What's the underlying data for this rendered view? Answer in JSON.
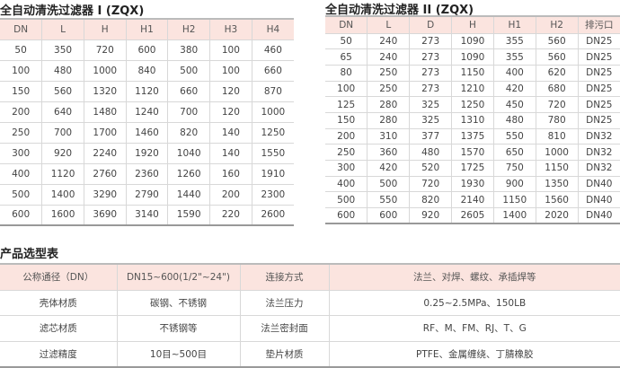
{
  "table1": {
    "title": "全自动清洗过滤器 I (ZQX)",
    "headers": [
      "DN",
      "L",
      "H",
      "H1",
      "H2",
      "H3",
      "H4"
    ],
    "rows": [
      [
        "50",
        "350",
        "720",
        "600",
        "380",
        "100",
        "460"
      ],
      [
        "100",
        "480",
        "1000",
        "840",
        "500",
        "100",
        "660"
      ],
      [
        "150",
        "560",
        "1320",
        "1120",
        "660",
        "120",
        "870"
      ],
      [
        "200",
        "640",
        "1480",
        "1240",
        "700",
        "120",
        "1000"
      ],
      [
        "250",
        "700",
        "1700",
        "1460",
        "820",
        "140",
        "1250"
      ],
      [
        "300",
        "920",
        "2240",
        "1920",
        "1040",
        "140",
        "1550"
      ],
      [
        "400",
        "1120",
        "2760",
        "2360",
        "1260",
        "160",
        "1910"
      ],
      [
        "500",
        "1400",
        "3290",
        "2790",
        "1440",
        "200",
        "2300"
      ],
      [
        "600",
        "1600",
        "3690",
        "3140",
        "1590",
        "220",
        "2600"
      ]
    ]
  },
  "table2": {
    "title": "全自动清洗过滤器 II (ZQX)",
    "headers": [
      "DN",
      "L",
      "D",
      "H",
      "H1",
      "H2",
      "排污口"
    ],
    "rows": [
      [
        "50",
        "240",
        "273",
        "1090",
        "355",
        "560",
        "DN25"
      ],
      [
        "65",
        "240",
        "273",
        "1090",
        "355",
        "560",
        "DN25"
      ],
      [
        "80",
        "250",
        "273",
        "1150",
        "400",
        "620",
        "DN25"
      ],
      [
        "100",
        "250",
        "273",
        "1210",
        "420",
        "680",
        "DN25"
      ],
      [
        "125",
        "280",
        "325",
        "1250",
        "450",
        "720",
        "DN25"
      ],
      [
        "150",
        "280",
        "325",
        "1310",
        "480",
        "780",
        "DN25"
      ],
      [
        "200",
        "310",
        "377",
        "1375",
        "550",
        "810",
        "DN32"
      ],
      [
        "250",
        "360",
        "480",
        "1570",
        "650",
        "1000",
        "DN32"
      ],
      [
        "300",
        "420",
        "520",
        "1725",
        "750",
        "1150",
        "DN32"
      ],
      [
        "400",
        "500",
        "720",
        "1930",
        "900",
        "1350",
        "DN40"
      ],
      [
        "500",
        "550",
        "820",
        "2140",
        "1150",
        "1560",
        "DN40"
      ],
      [
        "600",
        "600",
        "920",
        "2605",
        "1400",
        "2020",
        "DN40"
      ]
    ]
  },
  "table3": {
    "title": "产品选型表",
    "headers": [
      "公称通径（DN）",
      "DN15~600(1/2\"~24\")",
      "连接方式",
      "法兰、对焊、螺纹、承插焊等"
    ],
    "rows": [
      [
        "壳体材质",
        "碳钢、不锈钢",
        "法兰压力",
        "0.25~2.5MPa、150LB"
      ],
      [
        "滤芯材质",
        "不锈钢等",
        "法兰密封面",
        "RF、M、FM、RJ、T、G"
      ],
      [
        "过滤精度",
        "10目~500目",
        "垫片材质",
        "PTFE、金属缠绕、丁腈橡胶"
      ]
    ]
  },
  "colors": {
    "header_bg": "#fbe4df"
  }
}
